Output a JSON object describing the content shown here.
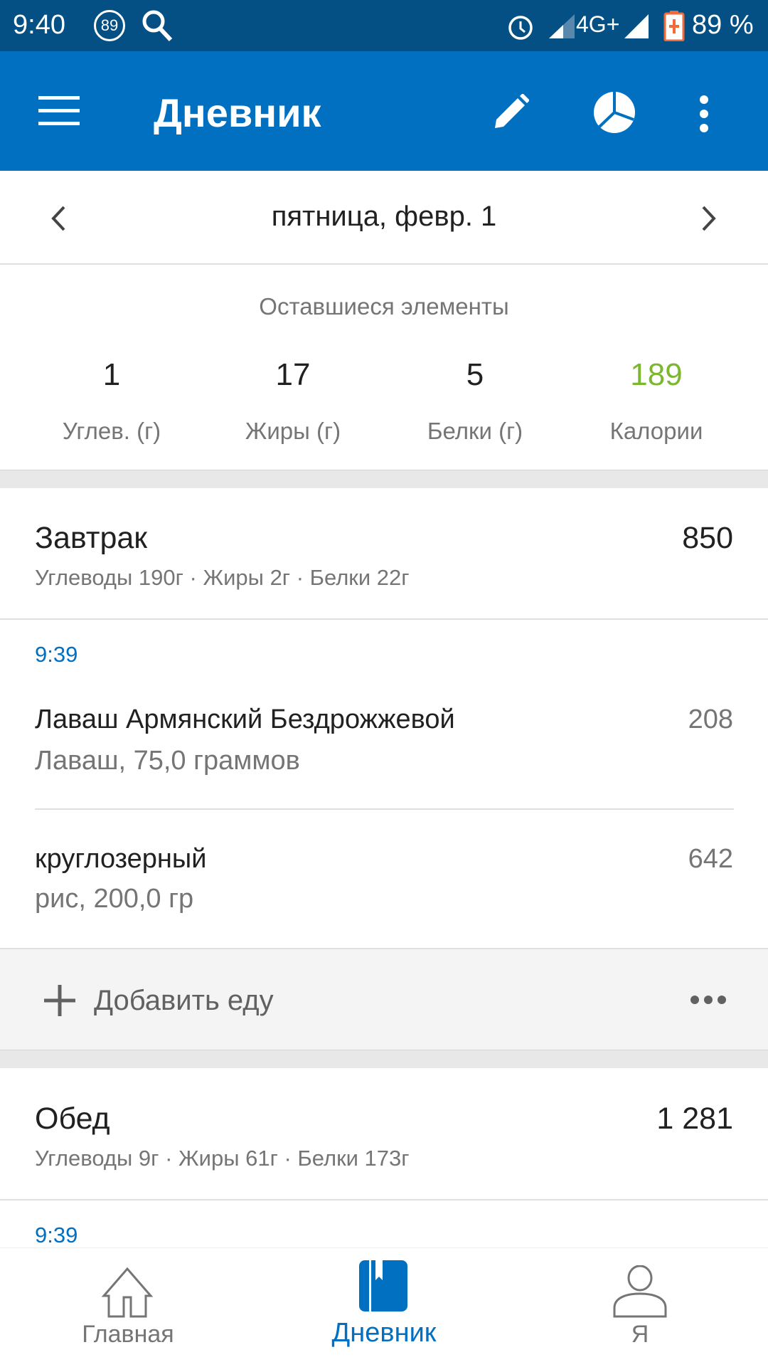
{
  "status_bar": {
    "time": "9:40",
    "notification_badge": "89",
    "battery": "89 %",
    "network": "4G+",
    "icons": [
      "alarm-icon",
      "signal-icon",
      "battery-icon",
      "search-icon"
    ]
  },
  "app_bar": {
    "title": "Дневник",
    "icons": [
      "menu-icon",
      "pencil-icon",
      "pie-chart-icon",
      "more-vert-icon"
    ]
  },
  "date_nav": {
    "date": "пятница, февр. 1"
  },
  "summary": {
    "title": "Оставшиеся элементы",
    "items": [
      {
        "value": "1",
        "label": "Углев. (г)"
      },
      {
        "value": "17",
        "label": "Жиры (г)"
      },
      {
        "value": "5",
        "label": "Белки (г)"
      },
      {
        "value": "189",
        "label": "Калории",
        "color": "#7cb82f"
      }
    ]
  },
  "meals": [
    {
      "title": "Завтрак",
      "macros": "Углеводы 190г · Жиры 2г · Белки 22г",
      "calories": "850",
      "time": "9:39",
      "items": [
        {
          "name": "Лаваш Армянский Бездрожжевой",
          "detail": "Лаваш, 75,0 граммов",
          "calories": "208"
        },
        {
          "name": "круглозерный",
          "detail": "рис, 200,0 гр",
          "calories": "642"
        }
      ],
      "add_label": "Добавить еду"
    },
    {
      "title": "Обед",
      "macros": "Углеводы 9г · Жиры 61г · Белки 173г",
      "calories": "1 281",
      "time": "9:39"
    }
  ],
  "bottom_nav": {
    "items": [
      {
        "label": "Главная",
        "active": false
      },
      {
        "label": "Дневник",
        "active": true
      },
      {
        "label": "Я",
        "active": false
      }
    ]
  },
  "colors": {
    "primary": "#0170c1",
    "status_bar": "#045085",
    "accent_green": "#7cb82f"
  }
}
